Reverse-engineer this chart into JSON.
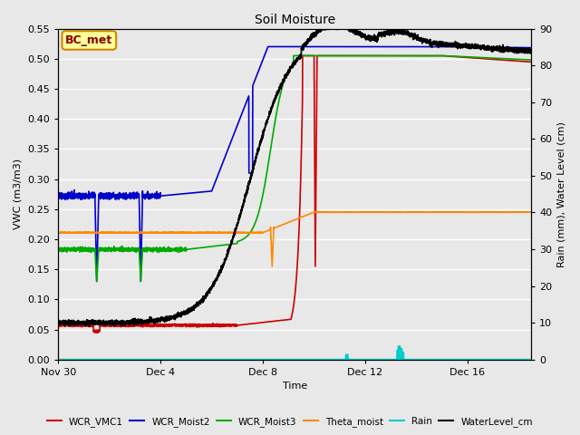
{
  "title": "Soil Moisture",
  "xlabel": "Time",
  "ylabel_left": "VWC (m3/m3)",
  "ylabel_right": "Rain (mm), Water Level (cm)",
  "ylim_left": [
    0.0,
    0.55
  ],
  "ylim_right": [
    0,
    90
  ],
  "yticks_left": [
    0.0,
    0.05,
    0.1,
    0.15,
    0.2,
    0.25,
    0.3,
    0.35,
    0.4,
    0.45,
    0.5,
    0.55
  ],
  "yticks_right": [
    0,
    10,
    20,
    30,
    40,
    50,
    60,
    70,
    80,
    90
  ],
  "xlim": [
    0,
    18.5
  ],
  "xtick_positions": [
    0,
    4,
    8,
    12,
    16
  ],
  "xtick_labels": [
    "Nov 30",
    "Dec 4",
    "Dec 8",
    "Dec 12",
    "Dec 16"
  ],
  "bg_color": "#e8e8e8",
  "grid_color": "white",
  "annotation_text": "BC_met",
  "annotation_facecolor": "#ffff99",
  "annotation_edgecolor": "#cc8800",
  "annotation_textcolor": "#8b0000",
  "colors": {
    "WCR_VMC1": "#cc0000",
    "WCR_Moist2": "#0000cc",
    "WCR_Moist3": "#00aa00",
    "Theta_moist": "#ff8800",
    "Rain": "#00cccc",
    "WaterLevel_cm": "#000000"
  },
  "legend_labels": [
    "WCR_VMC1",
    "WCR_Moist2",
    "WCR_Moist3",
    "Theta_moist",
    "Rain",
    "WaterLevel_cm"
  ]
}
